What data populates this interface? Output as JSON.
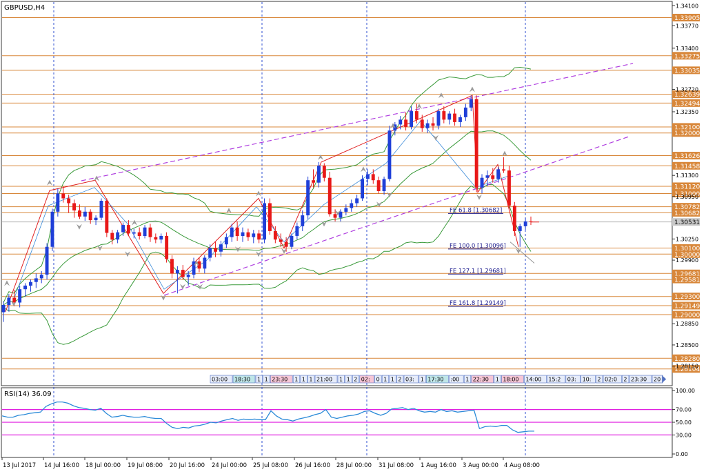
{
  "window": {
    "title": "GBPUSD,H4"
  },
  "rsi": {
    "label": "RSI(14) 36.09"
  },
  "chart_data": {
    "type": "candlestick",
    "symbol": "GBPUSD",
    "timeframe": "H4",
    "ylim": [
      1.2785,
      1.3415
    ],
    "price_ticks": [
      {
        "value": 1.341,
        "label": "1.34100"
      },
      {
        "value": 1.3377,
        "label": "1.33770"
      },
      {
        "value": 1.334,
        "label": "1.33400"
      },
      {
        "value": 1.3272,
        "label": "1.32720"
      },
      {
        "value": 1.3235,
        "label": "1.32350"
      },
      {
        "value": 1.313,
        "label": "1.31300"
      },
      {
        "value": 1.3095,
        "label": "1.30950"
      },
      {
        "value": 1.3025,
        "label": "1.30250"
      },
      {
        "value": 1.299,
        "label": "1.29900"
      },
      {
        "value": 1.2885,
        "label": "1.28850"
      },
      {
        "value": 1.285,
        "label": "1.28500"
      },
      {
        "value": 1.2815,
        "label": "1.28150"
      }
    ],
    "levels": [
      {
        "value": 1.33905,
        "label": "1.33905"
      },
      {
        "value": 1.33275,
        "label": "1.33275"
      },
      {
        "value": 1.33035,
        "label": "1.33035"
      },
      {
        "value": 1.32639,
        "label": "1.32639"
      },
      {
        "value": 1.32494,
        "label": "1.32494"
      },
      {
        "value": 1.321,
        "label": "1.32100"
      },
      {
        "value": 1.32,
        "label": "1.32000"
      },
      {
        "value": 1.31626,
        "label": "1.31626"
      },
      {
        "value": 1.31458,
        "label": "1.31458"
      },
      {
        "value": 1.3112,
        "label": "1.31120"
      },
      {
        "value": 1.31,
        "label": "1.31000"
      },
      {
        "value": 1.30782,
        "label": "1.30782"
      },
      {
        "value": 1.30682,
        "label": "1.30682"
      },
      {
        "value": 1.301,
        "label": "1.30100"
      },
      {
        "value": 1.3,
        "label": "1.30000"
      },
      {
        "value": 1.29681,
        "label": "1.29681"
      },
      {
        "value": 1.29581,
        "label": "1.29581"
      },
      {
        "value": 1.293,
        "label": "1.29300"
      },
      {
        "value": 1.29149,
        "label": "1.29149"
      },
      {
        "value": 1.29,
        "label": "1.29000"
      },
      {
        "value": 1.2828,
        "label": "1.28280"
      },
      {
        "value": 1.28104,
        "label": "1.28104"
      }
    ],
    "current_price": {
      "value": 1.30531,
      "label": "1.30531"
    },
    "fibo_labels": [
      {
        "text": "FE 61.8 [1.30682]",
        "value": 1.30682
      },
      {
        "text": "FE 100.0 [1.30096]",
        "value": 1.30096
      },
      {
        "text": "FE 127.1 [1.29681]",
        "value": 1.29681
      },
      {
        "text": "FE 161.8 [1.29149]",
        "value": 1.29149
      }
    ],
    "x_labels": [
      "13 Jul 2017",
      "14 Jul 16:00",
      "18 Jul 00:00",
      "19 Jul 08:00",
      "20 Jul 16:00",
      "24 Jul 00:00",
      "25 Jul 08:00",
      "26 Jul 16:00",
      "28 Jul 00:00",
      "31 Jul 08:00",
      "1 Aug 16:00",
      "3 Aug 00:00",
      "4 Aug 08:00"
    ],
    "time_tags": [
      "03:00",
      "18:30",
      "1",
      "1",
      "23:30",
      "1",
      "1",
      "1",
      "21:00",
      "1",
      "1",
      "2",
      "02:",
      "0",
      "1",
      "1",
      "2",
      "03:",
      "1",
      "17:30",
      ":00",
      "1",
      "22:30",
      "1",
      "18:00",
      "14:00",
      "15:2",
      "03:",
      "10:",
      "2",
      "02:0",
      "2",
      "23:30",
      "20",
      "02:0",
      "21:00"
    ],
    "candles": [
      [
        1.2904,
        1.2922,
        1.2888,
        1.2916
      ],
      [
        1.2916,
        1.2934,
        1.2905,
        1.2928
      ],
      [
        1.2928,
        1.2941,
        1.2914,
        1.292
      ],
      [
        1.292,
        1.2948,
        1.2912,
        1.2942
      ],
      [
        1.2942,
        1.2952,
        1.293,
        1.2948
      ],
      [
        1.2948,
        1.2958,
        1.2938,
        1.2954
      ],
      [
        1.2954,
        1.2968,
        1.2944,
        1.296
      ],
      [
        1.296,
        1.2972,
        1.2952,
        1.2966
      ],
      [
        1.2966,
        1.3018,
        1.2958,
        1.3012
      ],
      [
        1.3012,
        1.3075,
        1.3005,
        1.307
      ],
      [
        1.307,
        1.3108,
        1.3062,
        1.31
      ],
      [
        1.31,
        1.3112,
        1.3085,
        1.3092
      ],
      [
        1.3092,
        1.3098,
        1.3068,
        1.3084
      ],
      [
        1.3084,
        1.309,
        1.306,
        1.3072
      ],
      [
        1.3072,
        1.3082,
        1.3058,
        1.3062
      ],
      [
        1.3062,
        1.3078,
        1.3055,
        1.307
      ],
      [
        1.307,
        1.3074,
        1.305,
        1.3056
      ],
      [
        1.3056,
        1.3064,
        1.3048,
        1.306
      ],
      [
        1.306,
        1.3092,
        1.3056,
        1.3088
      ],
      [
        1.3088,
        1.3092,
        1.3028,
        1.3035
      ],
      [
        1.3035,
        1.304,
        1.3016,
        1.3024
      ],
      [
        1.3024,
        1.304,
        1.3018,
        1.3036
      ],
      [
        1.3036,
        1.3052,
        1.303,
        1.3048
      ],
      [
        1.3048,
        1.3056,
        1.303,
        1.3034
      ],
      [
        1.3034,
        1.3042,
        1.3026,
        1.3036
      ],
      [
        1.3036,
        1.3044,
        1.3024,
        1.303
      ],
      [
        1.303,
        1.3048,
        1.3026,
        1.3044
      ],
      [
        1.3044,
        1.305,
        1.302,
        1.3028
      ],
      [
        1.3028,
        1.3034,
        1.3018,
        1.3024
      ],
      [
        1.3024,
        1.3034,
        1.3018,
        1.303
      ],
      [
        1.303,
        1.3036,
        1.2986,
        1.2992
      ],
      [
        1.2992,
        1.2998,
        1.296,
        1.2968
      ],
      [
        1.2968,
        1.298,
        1.2935,
        1.2974
      ],
      [
        1.2974,
        1.2982,
        1.2958,
        1.2962
      ],
      [
        1.2962,
        1.2972,
        1.2948,
        1.2966
      ],
      [
        1.2966,
        1.2994,
        1.296,
        1.2988
      ],
      [
        1.2988,
        1.2994,
        1.297,
        1.2976
      ],
      [
        1.2976,
        1.2998,
        1.2968,
        1.2994
      ],
      [
        1.2994,
        1.3016,
        1.2988,
        1.301
      ],
      [
        1.301,
        1.302,
        1.2995,
        1.3004
      ],
      [
        1.3004,
        1.3022,
        1.2996,
        1.3016
      ],
      [
        1.3016,
        1.3034,
        1.301,
        1.3028
      ],
      [
        1.3028,
        1.305,
        1.302,
        1.3044
      ],
      [
        1.3044,
        1.3054,
        1.3022,
        1.303
      ],
      [
        1.303,
        1.3044,
        1.302,
        1.3036
      ],
      [
        1.3036,
        1.3042,
        1.3022,
        1.3028
      ],
      [
        1.3028,
        1.304,
        1.3018,
        1.3034
      ],
      [
        1.3034,
        1.304,
        1.3018,
        1.3024
      ],
      [
        1.3024,
        1.3092,
        1.3018,
        1.3084
      ],
      [
        1.3084,
        1.3092,
        1.3032,
        1.3038
      ],
      [
        1.3038,
        1.3046,
        1.3018,
        1.3024
      ],
      [
        1.3024,
        1.3034,
        1.3012,
        1.302
      ],
      [
        1.302,
        1.3028,
        1.3004,
        1.3012
      ],
      [
        1.3012,
        1.3034,
        1.3008,
        1.303
      ],
      [
        1.303,
        1.3052,
        1.3024,
        1.3046
      ],
      [
        1.3046,
        1.3072,
        1.3038,
        1.3064
      ],
      [
        1.3064,
        1.3128,
        1.3058,
        1.3122
      ],
      [
        1.3122,
        1.314,
        1.311,
        1.3118
      ],
      [
        1.3118,
        1.3152,
        1.311,
        1.3146
      ],
      [
        1.3146,
        1.315,
        1.312,
        1.3126
      ],
      [
        1.3126,
        1.3136,
        1.3062,
        1.3066
      ],
      [
        1.3066,
        1.3074,
        1.3054,
        1.306
      ],
      [
        1.306,
        1.3074,
        1.3054,
        1.307
      ],
      [
        1.307,
        1.3082,
        1.3064,
        1.3076
      ],
      [
        1.3076,
        1.309,
        1.307,
        1.3084
      ],
      [
        1.3084,
        1.3098,
        1.3078,
        1.3092
      ],
      [
        1.3092,
        1.313,
        1.3088,
        1.3124
      ],
      [
        1.3124,
        1.314,
        1.3114,
        1.3132
      ],
      [
        1.3132,
        1.314,
        1.3116,
        1.3122
      ],
      [
        1.3122,
        1.3128,
        1.31,
        1.3104
      ],
      [
        1.3104,
        1.3128,
        1.3098,
        1.3124
      ],
      [
        1.3124,
        1.3212,
        1.312,
        1.3204
      ],
      [
        1.3204,
        1.3218,
        1.3196,
        1.3214
      ],
      [
        1.3214,
        1.3228,
        1.3206,
        1.3222
      ],
      [
        1.3222,
        1.3234,
        1.3204,
        1.321
      ],
      [
        1.321,
        1.3244,
        1.3206,
        1.3236
      ],
      [
        1.3236,
        1.3248,
        1.3216,
        1.3222
      ],
      [
        1.3222,
        1.323,
        1.3202,
        1.3208
      ],
      [
        1.3208,
        1.3222,
        1.32,
        1.3216
      ],
      [
        1.3216,
        1.3226,
        1.3204,
        1.3212
      ],
      [
        1.3212,
        1.324,
        1.3206,
        1.3236
      ],
      [
        1.3236,
        1.3244,
        1.3216,
        1.3222
      ],
      [
        1.3222,
        1.3236,
        1.3214,
        1.3232
      ],
      [
        1.3232,
        1.324,
        1.3212,
        1.3218
      ],
      [
        1.3218,
        1.323,
        1.321,
        1.3226
      ],
      [
        1.3226,
        1.3248,
        1.322,
        1.3242
      ],
      [
        1.3242,
        1.3262,
        1.3236,
        1.3256
      ],
      [
        1.3256,
        1.3262,
        1.3102,
        1.311
      ],
      [
        1.311,
        1.3132,
        1.31,
        1.3126
      ],
      [
        1.3126,
        1.3138,
        1.3112,
        1.313
      ],
      [
        1.313,
        1.3142,
        1.3118,
        1.3124
      ],
      [
        1.3124,
        1.3144,
        1.3118,
        1.314
      ],
      [
        1.314,
        1.316,
        1.3134,
        1.3138
      ],
      [
        1.3138,
        1.3146,
        1.3072,
        1.308
      ],
      [
        1.308,
        1.3086,
        1.303,
        1.3038
      ],
      [
        1.3038,
        1.305,
        1.3012,
        1.3046
      ],
      [
        1.3046,
        1.306,
        1.304,
        1.3054
      ],
      [
        1.3054,
        1.3062,
        1.3048,
        1.3053
      ]
    ],
    "rsi": {
      "ylim": [
        0,
        100
      ],
      "ticks": [
        {
          "value": 100,
          "label": "100.00"
        },
        {
          "value": 70,
          "label": "70.00"
        },
        {
          "value": 50,
          "label": "50.00"
        },
        {
          "value": 30,
          "label": "30.00"
        },
        {
          "value": 0,
          "label": "0.00"
        }
      ],
      "levels": [
        70,
        50,
        30
      ],
      "values": [
        60,
        58,
        58,
        61,
        62,
        64,
        65,
        66,
        75,
        79,
        82,
        82,
        80,
        76,
        73,
        72,
        70,
        69,
        72,
        64,
        58,
        59,
        61,
        59,
        58,
        58,
        59,
        57,
        56,
        56,
        48,
        42,
        40,
        42,
        41,
        44,
        45,
        47,
        50,
        49,
        52,
        54,
        56,
        53,
        55,
        54,
        55,
        54,
        54,
        68,
        60,
        55,
        54,
        52,
        55,
        57,
        59,
        62,
        64,
        70,
        58,
        56,
        58,
        60,
        61,
        63,
        67,
        68,
        64,
        61,
        64,
        71,
        72,
        73,
        70,
        72,
        68,
        66,
        67,
        66,
        70,
        67,
        68,
        66,
        67,
        68,
        69,
        40,
        43,
        44,
        43,
        45,
        45,
        38,
        34,
        35,
        36,
        36
      ]
    }
  }
}
